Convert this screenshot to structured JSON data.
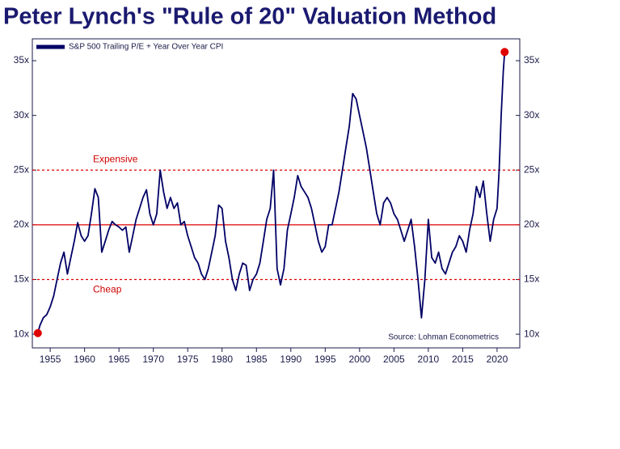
{
  "chart_data": {
    "type": "line",
    "title": "Peter Lynch's \"Rule of 20\" Valuation Method",
    "source": "Source: Lohman Econometrics",
    "legend_position": "upper left",
    "series": [
      {
        "name": "S&P 500 Trailing P/E + Year Over Year CPI",
        "color": "#000066",
        "x": [
          1953.2,
          1953.5,
          1954,
          1954.5,
          1955,
          1955.5,
          1956,
          1956.5,
          1957,
          1957.5,
          1958,
          1958.5,
          1959,
          1959.5,
          1960,
          1960.5,
          1961,
          1961.5,
          1962,
          1962.5,
          1963,
          1963.5,
          1964,
          1964.5,
          1965,
          1965.5,
          1966,
          1966.5,
          1967,
          1967.5,
          1968,
          1968.5,
          1969,
          1969.5,
          1970,
          1970.5,
          1971,
          1971.5,
          1972,
          1972.5,
          1973,
          1973.5,
          1974,
          1974.5,
          1975,
          1975.5,
          1976,
          1976.5,
          1977,
          1977.5,
          1978,
          1978.5,
          1979,
          1979.5,
          1980,
          1980.5,
          1981,
          1981.5,
          1982,
          1982.5,
          1983,
          1983.5,
          1984,
          1984.5,
          1985,
          1985.5,
          1986,
          1986.5,
          1987,
          1987.5,
          1988,
          1988.5,
          1989,
          1989.5,
          1990,
          1990.5,
          1991,
          1991.5,
          1992,
          1992.5,
          1993,
          1993.5,
          1994,
          1994.5,
          1995,
          1995.5,
          1996,
          1996.5,
          1997,
          1997.5,
          1998,
          1998.5,
          1999,
          1999.5,
          2000,
          2000.5,
          2001,
          2001.5,
          2002,
          2002.5,
          2003,
          2003.5,
          2004,
          2004.5,
          2005,
          2005.5,
          2006,
          2006.5,
          2007,
          2007.5,
          2008,
          2008.5,
          2009,
          2009.5,
          2010,
          2010.5,
          2011,
          2011.5,
          2012,
          2012.5,
          2013,
          2013.5,
          2014,
          2014.5,
          2015,
          2015.5,
          2016,
          2016.5,
          2017,
          2017.5,
          2018,
          2018.5,
          2019,
          2019.5,
          2020,
          2020.3,
          2020.6,
          2020.9,
          2021.1
        ],
        "values": [
          10.1,
          10.8,
          11.5,
          11.8,
          12.5,
          13.5,
          15,
          16.5,
          17.5,
          15.5,
          17,
          18.5,
          20.2,
          19,
          18.5,
          19,
          21,
          23.3,
          22.5,
          17.5,
          18.5,
          19.5,
          20.3,
          20,
          19.8,
          19.5,
          19.8,
          17.5,
          19,
          20.5,
          21.5,
          22.5,
          23.2,
          21,
          20,
          21,
          25,
          23,
          21.5,
          22.5,
          21.5,
          22,
          20,
          20.3,
          19,
          18,
          17,
          16.5,
          15.5,
          15,
          16,
          17.5,
          19,
          21.8,
          21.5,
          18.5,
          17,
          15,
          14,
          15.5,
          16.5,
          16.3,
          14,
          15,
          15.5,
          16.5,
          18.5,
          20.5,
          21.5,
          25,
          16,
          14.5,
          16,
          19.5,
          21,
          22.5,
          24.5,
          23.5,
          23,
          22.5,
          21.5,
          20,
          18.5,
          17.5,
          18,
          20,
          20,
          21.5,
          23,
          25,
          27,
          29,
          32,
          31.5,
          30,
          28.5,
          27,
          25,
          23,
          21,
          20,
          22,
          22.5,
          22,
          21,
          20.5,
          19.5,
          18.5,
          19.5,
          20.5,
          18,
          15,
          11.5,
          15,
          20.5,
          17,
          16.5,
          17.5,
          16,
          15.5,
          16.5,
          17.5,
          18,
          19,
          18.5,
          17.5,
          19.5,
          21,
          23.5,
          22.5,
          24,
          21,
          18.5,
          20.5,
          21.5,
          25,
          30,
          34,
          35.8
        ]
      }
    ],
    "markers": {
      "color": "#e00000",
      "x": [
        1953.2,
        2021.1
      ],
      "values": [
        10.1,
        35.8
      ]
    },
    "reference_lines": {
      "color": "#e00000",
      "lines": [
        {
          "value": 25,
          "label": "Expensive",
          "style": "dashed",
          "label_side": "above"
        },
        {
          "value": 20,
          "style": "solid"
        },
        {
          "value": 15,
          "label": "Cheap",
          "style": "dashed",
          "label_side": "below"
        }
      ]
    },
    "xlim": [
      1952.4,
      2023.3
    ],
    "xticks": [
      1955,
      1960,
      1965,
      1970,
      1975,
      1980,
      1985,
      1990,
      1995,
      2000,
      2005,
      2010,
      2015,
      2020
    ],
    "ylim": [
      8.75,
      37
    ],
    "yticks": [
      {
        "value": 10,
        "label": "10x"
      },
      {
        "value": 15,
        "label": "15x"
      },
      {
        "value": 20,
        "label": "20x"
      },
      {
        "value": 25,
        "label": "25x"
      },
      {
        "value": 30,
        "label": "30x"
      },
      {
        "value": 35,
        "label": "35x"
      }
    ]
  }
}
